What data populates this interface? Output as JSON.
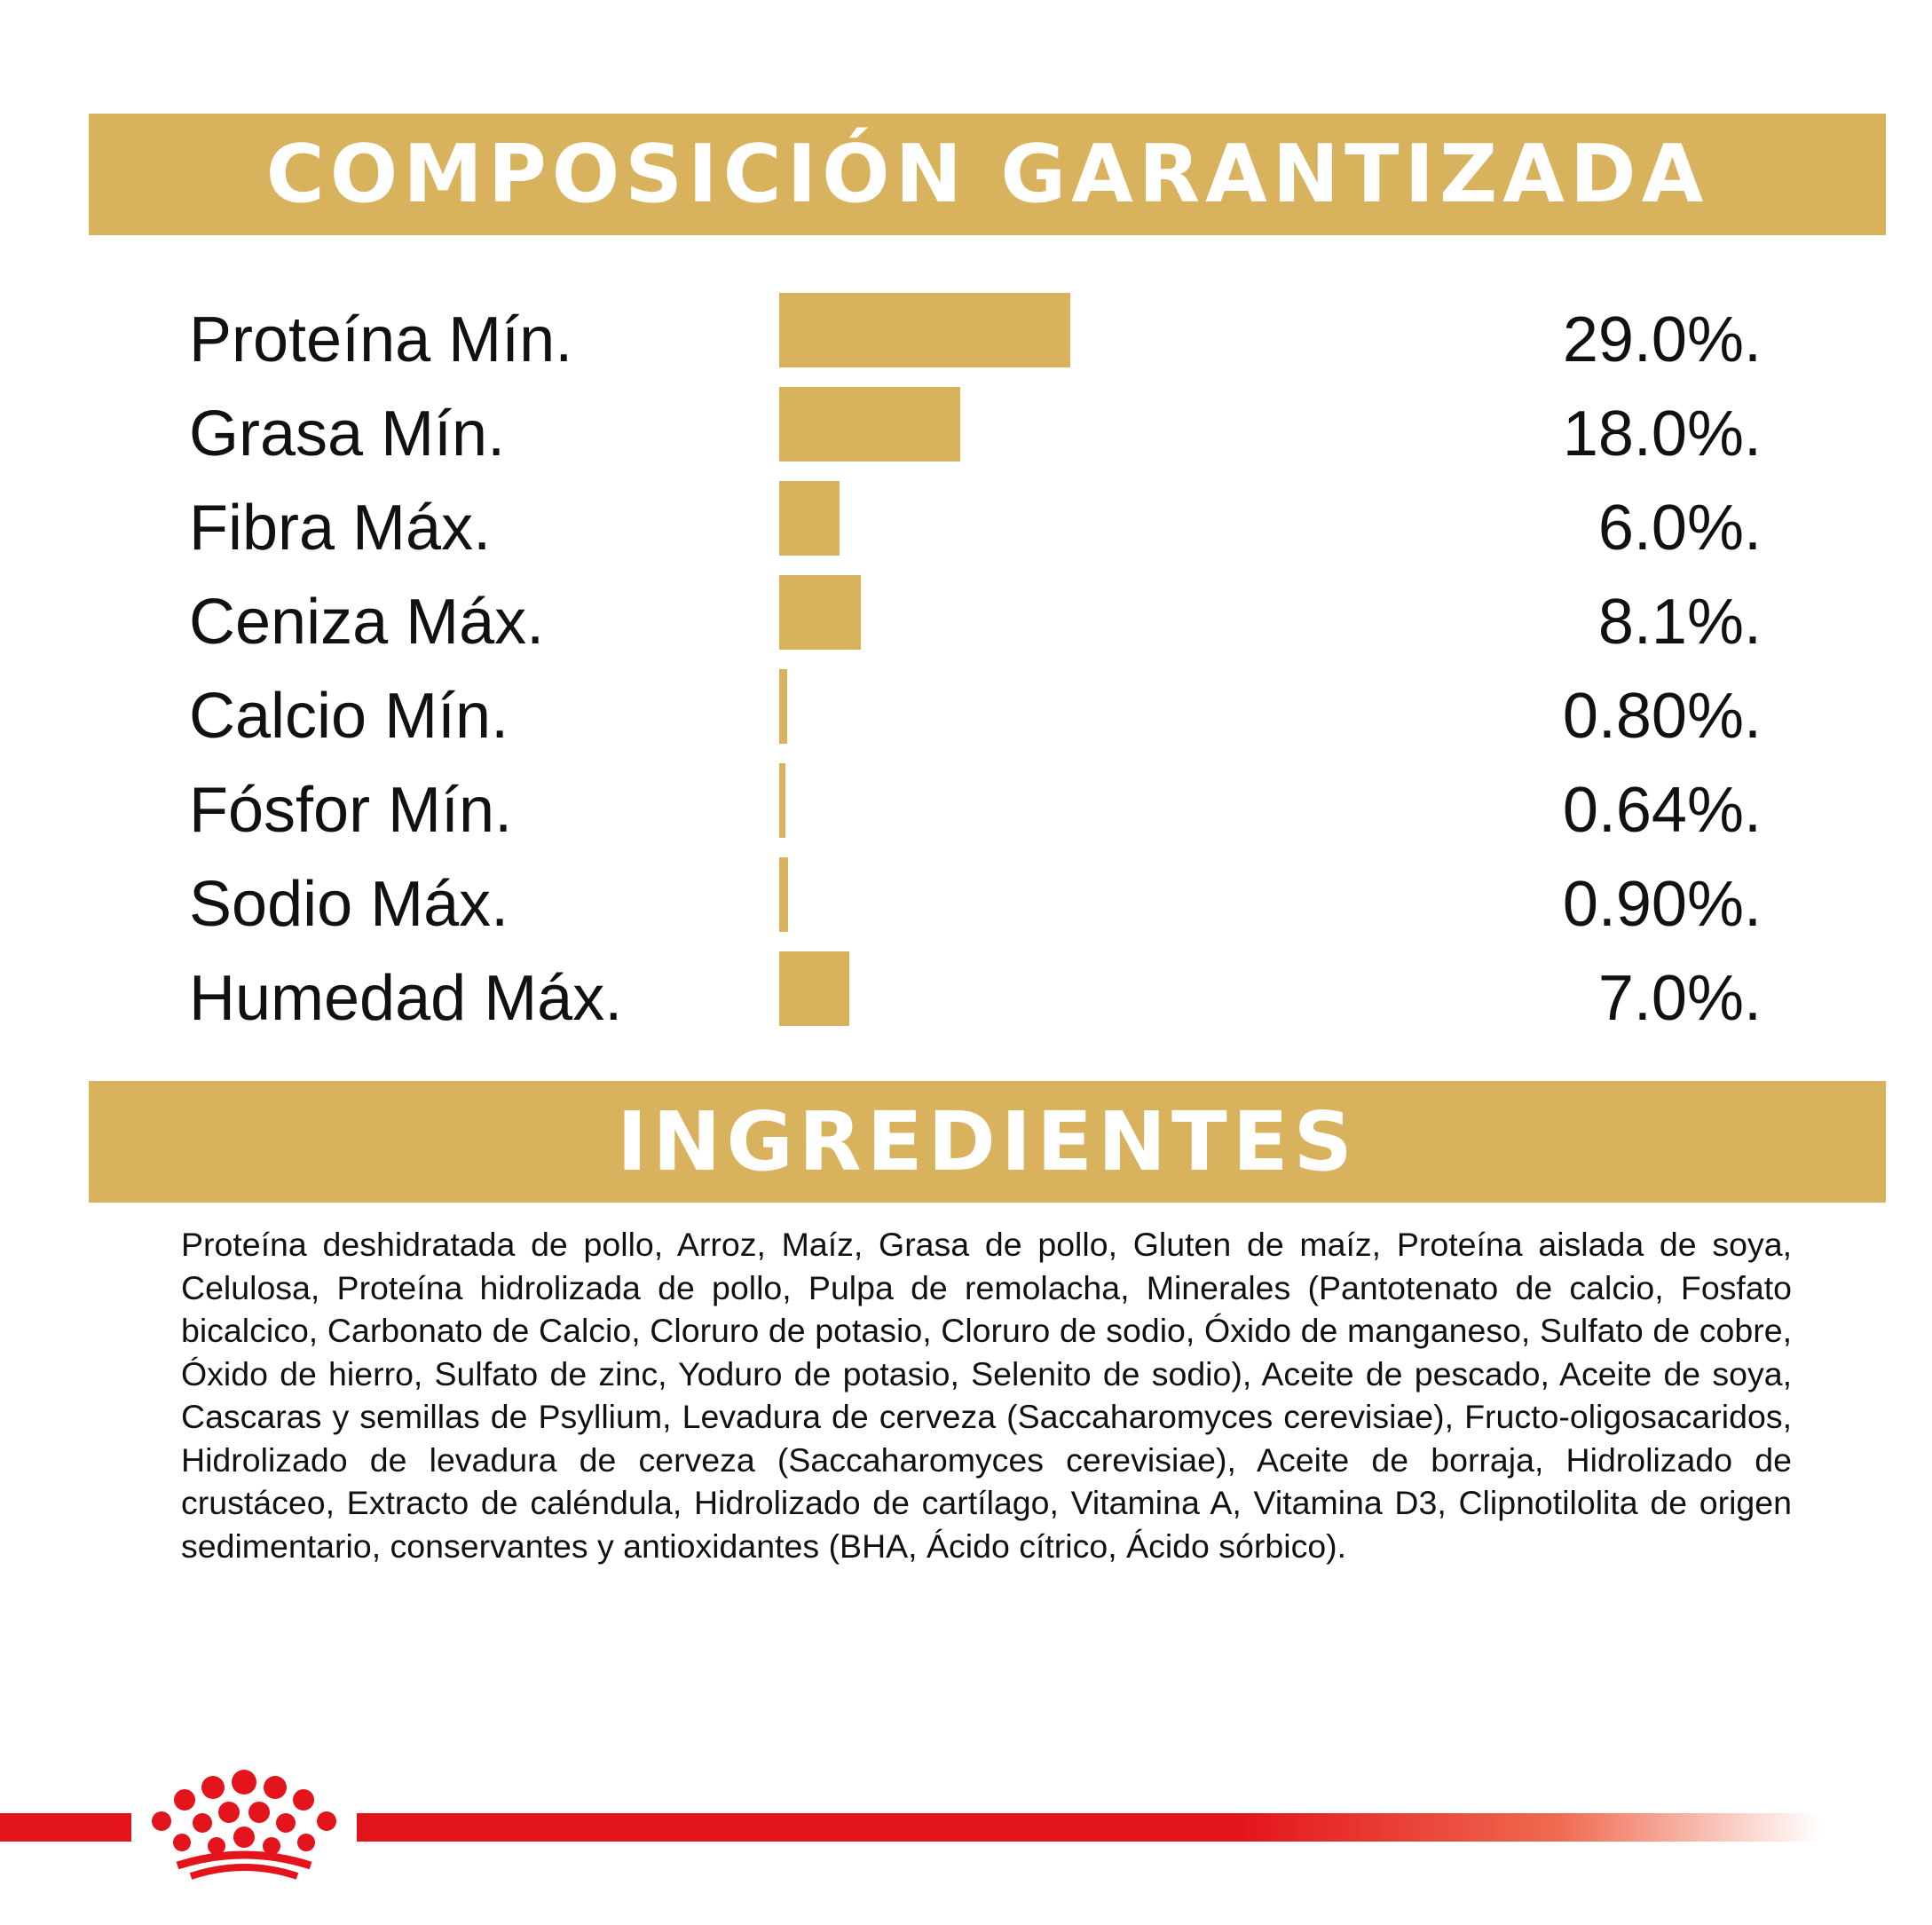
{
  "composition": {
    "title": "COMPOSICIÓN GARANTIZADA",
    "rows": [
      {
        "label": "Proteína Mín.",
        "value": "29.0%.",
        "percent": 29.0
      },
      {
        "label": "Grasa Mín.",
        "value": "18.0%.",
        "percent": 18.0
      },
      {
        "label": "Fibra Máx.",
        "value": "6.0%.",
        "percent": 6.0
      },
      {
        "label": "Ceniza Máx.",
        "value": "8.1%.",
        "percent": 8.1
      },
      {
        "label": "Calcio Mín.",
        "value": "0.80%.",
        "percent": 0.8
      },
      {
        "label": "Fósfor Mín.",
        "value": "0.64%.",
        "percent": 0.64
      },
      {
        "label": "Sodio Máx.",
        "value": "0.90%.",
        "percent": 0.9
      },
      {
        "label": "Humedad Máx.",
        "value": "7.0%.",
        "percent": 7.0
      }
    ]
  },
  "ingredients": {
    "title": "INGREDIENTES",
    "text": "Proteína deshidratada de pollo, Arroz, Maíz, Grasa de pollo, Gluten de maíz, Proteína aislada de soya, Celulosa, Proteína hidrolizada de pollo, Pulpa de remolacha, Minerales (Pantotenato de calcio, Fosfato bicalcico, Carbonato de Calcio, Cloruro de potasio, Cloruro de sodio, Óxido de manganeso, Sulfato de cobre, Óxido de hierro, Sulfato de zinc, Yoduro de potasio, Selenito de sodio), Aceite de pescado, Aceite de soya, Cascaras y semillas  de Psyllium, Levadura de cerveza (Saccaharomyces cerevisiae), Fructo-oligosacaridos, Hidrolizado de levadura de cerveza (Saccaharomyces cerevisiae), Aceite de borraja, Hidrolizado de crustáceo, Extracto de caléndula, Hidrolizado de cartílago, Vitamina A, Vitamina D3, Clipnotilolita de origen sedimentario, conservantes y antioxidantes (BHA, Ácido cítrico, Ácido sórbico)."
  },
  "colors": {
    "gold": "#d9b25e",
    "brand_red": "#e3141c"
  },
  "logo": {
    "icon": "crown-logo-icon"
  }
}
